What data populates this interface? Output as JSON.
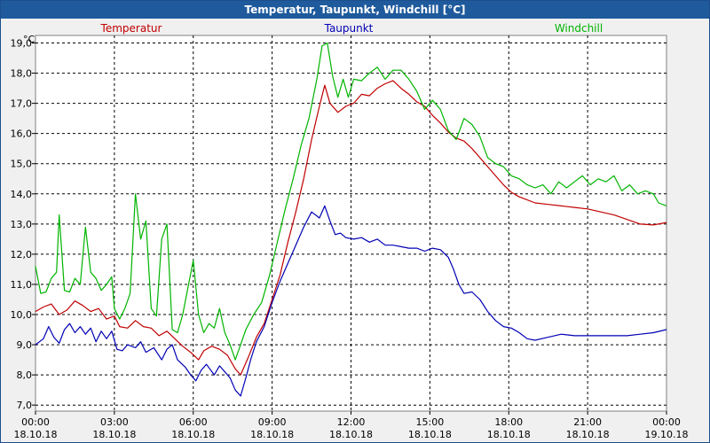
{
  "window": {
    "title": "Temperatur, Taupunkt, Windchill [°C]"
  },
  "chart_data": {
    "type": "line",
    "title": "Temperatur, Taupunkt, Windchill [°C]",
    "ylabel": "°C",
    "xlabel": "",
    "ylim": [
      6.8,
      19.25
    ],
    "xlim": [
      0,
      24
    ],
    "grid": true,
    "y_ticks": [
      7.0,
      8.0,
      9.0,
      10.0,
      11.0,
      12.0,
      13.0,
      14.0,
      15.0,
      16.0,
      17.0,
      18.0,
      19.0
    ],
    "y_tick_labels": [
      "7,0",
      "8,0",
      "9,0",
      "10,0",
      "11,0",
      "12,0",
      "13,0",
      "14,0",
      "15,0",
      "16,0",
      "17,0",
      "18,0",
      "19,0"
    ],
    "x_ticks": [
      {
        "hour": 0,
        "time": "00:00",
        "date": "18.10.18"
      },
      {
        "hour": 3,
        "time": "03:00",
        "date": "18.10.18"
      },
      {
        "hour": 6,
        "time": "06:00",
        "date": "18.10.18"
      },
      {
        "hour": 9,
        "time": "09:00",
        "date": "18.10.18"
      },
      {
        "hour": 12,
        "time": "12:00",
        "date": "18.10.18"
      },
      {
        "hour": 15,
        "time": "15:00",
        "date": "18.10.18"
      },
      {
        "hour": 18,
        "time": "18:00",
        "date": "18.10.18"
      },
      {
        "hour": 21,
        "time": "21:00",
        "date": "18.10.18"
      },
      {
        "hour": 24,
        "time": "00:00",
        "date": "19.10.18"
      }
    ],
    "series": [
      {
        "name": "Temperatur",
        "color": "#c00000",
        "points": [
          [
            0.0,
            10.1
          ],
          [
            0.3,
            10.25
          ],
          [
            0.6,
            10.35
          ],
          [
            0.9,
            10.0
          ],
          [
            1.2,
            10.15
          ],
          [
            1.5,
            10.45
          ],
          [
            1.8,
            10.3
          ],
          [
            2.1,
            10.1
          ],
          [
            2.4,
            10.2
          ],
          [
            2.7,
            9.85
          ],
          [
            3.0,
            9.95
          ],
          [
            3.2,
            9.6
          ],
          [
            3.5,
            9.55
          ],
          [
            3.8,
            9.8
          ],
          [
            4.1,
            9.6
          ],
          [
            4.4,
            9.55
          ],
          [
            4.7,
            9.3
          ],
          [
            5.0,
            9.45
          ],
          [
            5.3,
            9.2
          ],
          [
            5.6,
            8.95
          ],
          [
            5.9,
            8.75
          ],
          [
            6.2,
            8.5
          ],
          [
            6.4,
            8.8
          ],
          [
            6.7,
            8.95
          ],
          [
            7.0,
            8.85
          ],
          [
            7.3,
            8.65
          ],
          [
            7.6,
            8.2
          ],
          [
            7.8,
            8.0
          ],
          [
            8.1,
            8.6
          ],
          [
            8.4,
            9.25
          ],
          [
            8.7,
            9.7
          ],
          [
            9.0,
            10.5
          ],
          [
            9.3,
            11.3
          ],
          [
            9.6,
            12.4
          ],
          [
            9.9,
            13.4
          ],
          [
            10.2,
            14.5
          ],
          [
            10.5,
            15.8
          ],
          [
            10.8,
            16.9
          ],
          [
            11.0,
            17.6
          ],
          [
            11.2,
            17.0
          ],
          [
            11.5,
            16.7
          ],
          [
            11.8,
            16.9
          ],
          [
            12.1,
            17.0
          ],
          [
            12.4,
            17.3
          ],
          [
            12.7,
            17.25
          ],
          [
            13.0,
            17.5
          ],
          [
            13.3,
            17.65
          ],
          [
            13.6,
            17.75
          ],
          [
            13.9,
            17.5
          ],
          [
            14.2,
            17.3
          ],
          [
            14.5,
            17.05
          ],
          [
            14.8,
            16.9
          ],
          [
            15.1,
            16.6
          ],
          [
            15.4,
            16.35
          ],
          [
            15.7,
            16.05
          ],
          [
            16.0,
            15.85
          ],
          [
            16.3,
            15.75
          ],
          [
            16.6,
            15.5
          ],
          [
            16.9,
            15.2
          ],
          [
            17.2,
            14.9
          ],
          [
            17.5,
            14.6
          ],
          [
            17.8,
            14.3
          ],
          [
            18.1,
            14.05
          ],
          [
            18.4,
            13.9
          ],
          [
            18.7,
            13.8
          ],
          [
            19.0,
            13.7
          ],
          [
            19.5,
            13.65
          ],
          [
            20.0,
            13.6
          ],
          [
            20.5,
            13.55
          ],
          [
            21.0,
            13.5
          ],
          [
            21.5,
            13.4
          ],
          [
            22.0,
            13.3
          ],
          [
            22.5,
            13.15
          ],
          [
            23.0,
            13.0
          ],
          [
            23.5,
            12.97
          ],
          [
            24.0,
            13.05
          ]
        ]
      },
      {
        "name": "Taupunkt",
        "color": "#0000b4",
        "points": [
          [
            0.0,
            9.0
          ],
          [
            0.3,
            9.2
          ],
          [
            0.5,
            9.6
          ],
          [
            0.7,
            9.25
          ],
          [
            0.9,
            9.05
          ],
          [
            1.1,
            9.5
          ],
          [
            1.3,
            9.7
          ],
          [
            1.5,
            9.4
          ],
          [
            1.7,
            9.6
          ],
          [
            1.9,
            9.35
          ],
          [
            2.1,
            9.55
          ],
          [
            2.3,
            9.1
          ],
          [
            2.5,
            9.45
          ],
          [
            2.7,
            9.2
          ],
          [
            2.9,
            9.45
          ],
          [
            3.1,
            8.85
          ],
          [
            3.3,
            8.8
          ],
          [
            3.5,
            9.0
          ],
          [
            3.8,
            8.9
          ],
          [
            4.0,
            9.1
          ],
          [
            4.2,
            8.75
          ],
          [
            4.5,
            8.9
          ],
          [
            4.8,
            8.5
          ],
          [
            5.0,
            8.85
          ],
          [
            5.2,
            9.0
          ],
          [
            5.4,
            8.5
          ],
          [
            5.7,
            8.25
          ],
          [
            5.9,
            8.0
          ],
          [
            6.1,
            7.8
          ],
          [
            6.3,
            8.15
          ],
          [
            6.5,
            8.35
          ],
          [
            6.8,
            8.0
          ],
          [
            7.0,
            8.3
          ],
          [
            7.2,
            8.1
          ],
          [
            7.4,
            7.9
          ],
          [
            7.6,
            7.5
          ],
          [
            7.8,
            7.3
          ],
          [
            8.0,
            7.9
          ],
          [
            8.2,
            8.55
          ],
          [
            8.4,
            9.1
          ],
          [
            8.7,
            9.6
          ],
          [
            9.0,
            10.4
          ],
          [
            9.3,
            11.1
          ],
          [
            9.6,
            11.7
          ],
          [
            9.9,
            12.3
          ],
          [
            10.2,
            12.9
          ],
          [
            10.5,
            13.4
          ],
          [
            10.8,
            13.2
          ],
          [
            11.0,
            13.6
          ],
          [
            11.2,
            13.1
          ],
          [
            11.4,
            12.65
          ],
          [
            11.6,
            12.7
          ],
          [
            11.8,
            12.55
          ],
          [
            12.1,
            12.5
          ],
          [
            12.4,
            12.55
          ],
          [
            12.7,
            12.4
          ],
          [
            13.0,
            12.5
          ],
          [
            13.3,
            12.3
          ],
          [
            13.6,
            12.3
          ],
          [
            13.9,
            12.25
          ],
          [
            14.2,
            12.2
          ],
          [
            14.5,
            12.2
          ],
          [
            14.8,
            12.1
          ],
          [
            15.1,
            12.2
          ],
          [
            15.4,
            12.15
          ],
          [
            15.7,
            11.9
          ],
          [
            15.9,
            11.5
          ],
          [
            16.1,
            11.0
          ],
          [
            16.3,
            10.7
          ],
          [
            16.6,
            10.75
          ],
          [
            16.9,
            10.5
          ],
          [
            17.2,
            10.1
          ],
          [
            17.5,
            9.8
          ],
          [
            17.8,
            9.6
          ],
          [
            18.1,
            9.55
          ],
          [
            18.4,
            9.4
          ],
          [
            18.7,
            9.2
          ],
          [
            19.0,
            9.15
          ],
          [
            19.5,
            9.25
          ],
          [
            20.0,
            9.35
          ],
          [
            20.5,
            9.3
          ],
          [
            21.0,
            9.3
          ],
          [
            21.5,
            9.3
          ],
          [
            22.0,
            9.3
          ],
          [
            22.5,
            9.3
          ],
          [
            23.0,
            9.35
          ],
          [
            23.5,
            9.4
          ],
          [
            24.0,
            9.5
          ]
        ]
      },
      {
        "name": "Windchill",
        "color": "#00b400",
        "points": [
          [
            0.0,
            11.6
          ],
          [
            0.2,
            10.7
          ],
          [
            0.4,
            10.75
          ],
          [
            0.6,
            11.2
          ],
          [
            0.8,
            11.4
          ],
          [
            0.9,
            13.3
          ],
          [
            1.1,
            10.8
          ],
          [
            1.3,
            10.75
          ],
          [
            1.5,
            11.2
          ],
          [
            1.7,
            11.0
          ],
          [
            1.9,
            12.9
          ],
          [
            2.1,
            11.4
          ],
          [
            2.3,
            11.2
          ],
          [
            2.5,
            10.8
          ],
          [
            2.7,
            11.0
          ],
          [
            2.9,
            11.25
          ],
          [
            3.0,
            10.2
          ],
          [
            3.2,
            9.85
          ],
          [
            3.4,
            10.2
          ],
          [
            3.6,
            10.7
          ],
          [
            3.8,
            14.0
          ],
          [
            4.0,
            12.5
          ],
          [
            4.2,
            13.1
          ],
          [
            4.4,
            10.2
          ],
          [
            4.6,
            9.95
          ],
          [
            4.8,
            12.5
          ],
          [
            5.0,
            13.0
          ],
          [
            5.2,
            9.5
          ],
          [
            5.4,
            9.4
          ],
          [
            5.6,
            10.0
          ],
          [
            5.8,
            10.9
          ],
          [
            6.0,
            11.8
          ],
          [
            6.2,
            10.0
          ],
          [
            6.4,
            9.4
          ],
          [
            6.6,
            9.7
          ],
          [
            6.8,
            9.55
          ],
          [
            7.0,
            10.2
          ],
          [
            7.2,
            9.4
          ],
          [
            7.4,
            9.0
          ],
          [
            7.6,
            8.5
          ],
          [
            7.8,
            9.0
          ],
          [
            8.0,
            9.5
          ],
          [
            8.3,
            10.0
          ],
          [
            8.6,
            10.4
          ],
          [
            8.9,
            11.3
          ],
          [
            9.2,
            12.4
          ],
          [
            9.5,
            13.5
          ],
          [
            9.8,
            14.5
          ],
          [
            10.1,
            15.6
          ],
          [
            10.4,
            16.5
          ],
          [
            10.7,
            17.8
          ],
          [
            10.9,
            18.9
          ],
          [
            11.1,
            19.0
          ],
          [
            11.3,
            17.9
          ],
          [
            11.5,
            17.2
          ],
          [
            11.7,
            17.8
          ],
          [
            11.9,
            17.2
          ],
          [
            12.1,
            17.8
          ],
          [
            12.4,
            17.75
          ],
          [
            12.7,
            18.0
          ],
          [
            13.0,
            18.2
          ],
          [
            13.3,
            17.8
          ],
          [
            13.6,
            18.1
          ],
          [
            13.9,
            18.1
          ],
          [
            14.2,
            17.8
          ],
          [
            14.5,
            17.4
          ],
          [
            14.8,
            16.8
          ],
          [
            15.1,
            17.1
          ],
          [
            15.4,
            16.8
          ],
          [
            15.7,
            16.1
          ],
          [
            16.0,
            15.8
          ],
          [
            16.3,
            16.5
          ],
          [
            16.6,
            16.3
          ],
          [
            16.9,
            15.9
          ],
          [
            17.2,
            15.2
          ],
          [
            17.5,
            15.0
          ],
          [
            17.8,
            14.9
          ],
          [
            18.1,
            14.6
          ],
          [
            18.4,
            14.5
          ],
          [
            18.7,
            14.3
          ],
          [
            19.0,
            14.2
          ],
          [
            19.3,
            14.3
          ],
          [
            19.6,
            14.0
          ],
          [
            19.9,
            14.4
          ],
          [
            20.2,
            14.2
          ],
          [
            20.5,
            14.4
          ],
          [
            20.8,
            14.6
          ],
          [
            21.1,
            14.3
          ],
          [
            21.4,
            14.5
          ],
          [
            21.7,
            14.4
          ],
          [
            22.0,
            14.6
          ],
          [
            22.3,
            14.1
          ],
          [
            22.6,
            14.3
          ],
          [
            22.9,
            14.0
          ],
          [
            23.2,
            14.1
          ],
          [
            23.5,
            14.0
          ],
          [
            23.7,
            13.7
          ],
          [
            24.0,
            13.6
          ]
        ]
      }
    ]
  }
}
